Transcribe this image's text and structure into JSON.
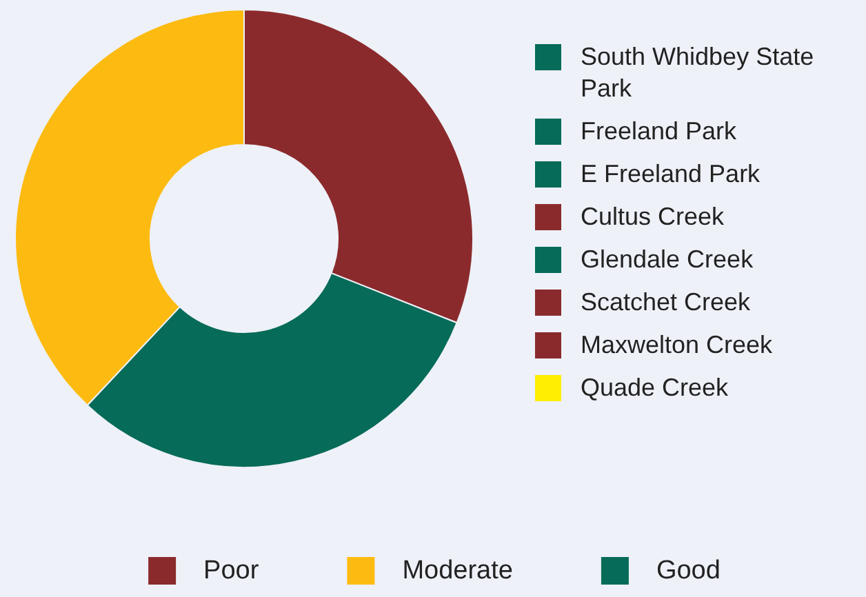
{
  "chart_data": [
    {
      "type": "donut",
      "categories": [
        "Poor",
        "Moderate",
        "Good"
      ],
      "values": [
        31,
        38,
        31
      ],
      "colors": [
        "#8b2a2c",
        "#fdbb11",
        "#066b58"
      ],
      "legend": "bottom"
    },
    {
      "type": "other",
      "categories": [
        "South Whidbey State Park",
        "Freeland Park",
        "E Freeland Park",
        "Cultus Creek",
        "Glendale Creek",
        "Scatchet Creek",
        "Maxwelton Creek",
        "Quade Creek"
      ],
      "colors": [
        "#066b58",
        "#066b58",
        "#066b58",
        "#8b2a2c",
        "#066b58",
        "#8b2a2c",
        "#8b2a2c",
        "#ffee00"
      ]
    }
  ]
}
